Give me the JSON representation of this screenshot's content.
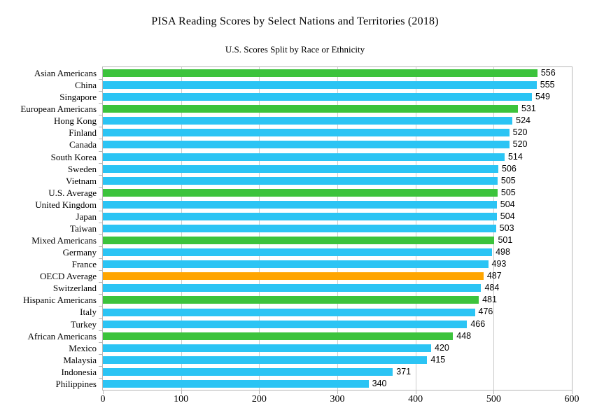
{
  "header": {
    "title": "PISA Reading Scores by Select Nations and Territories (2018)",
    "subtitle": "U.S. Scores Split by Race or Ethnicity"
  },
  "chart_data": {
    "type": "bar",
    "orientation": "horizontal",
    "title": "PISA Reading Scores by Select Nations and Territories (2018)",
    "subtitle": "U.S. Scores Split by Race or Ethnicity",
    "xlabel": "",
    "ylabel": "",
    "xlim": [
      0,
      600
    ],
    "x_ticks": [
      0,
      100,
      200,
      300,
      400,
      500,
      600
    ],
    "grid": true,
    "legend": false,
    "value_labels_shown": true,
    "colors": {
      "nation": "#2BC4F4",
      "us_group": "#3CC33C",
      "oecd_average": "#FFA500"
    },
    "bars": [
      {
        "label": "Asian Americans",
        "value": 556,
        "group": "us_group"
      },
      {
        "label": "China",
        "value": 555,
        "group": "nation"
      },
      {
        "label": "Singapore",
        "value": 549,
        "group": "nation"
      },
      {
        "label": "European Americans",
        "value": 531,
        "group": "us_group"
      },
      {
        "label": "Hong Kong",
        "value": 524,
        "group": "nation"
      },
      {
        "label": "Finland",
        "value": 520,
        "group": "nation"
      },
      {
        "label": "Canada",
        "value": 520,
        "group": "nation"
      },
      {
        "label": "South Korea",
        "value": 514,
        "group": "nation"
      },
      {
        "label": "Sweden",
        "value": 506,
        "group": "nation"
      },
      {
        "label": "Vietnam",
        "value": 505,
        "group": "nation"
      },
      {
        "label": "U.S. Average",
        "value": 505,
        "group": "us_group"
      },
      {
        "label": "United Kingdom",
        "value": 504,
        "group": "nation"
      },
      {
        "label": "Japan",
        "value": 504,
        "group": "nation"
      },
      {
        "label": "Taiwan",
        "value": 503,
        "group": "nation"
      },
      {
        "label": "Mixed Americans",
        "value": 501,
        "group": "us_group"
      },
      {
        "label": "Germany",
        "value": 498,
        "group": "nation"
      },
      {
        "label": "France",
        "value": 493,
        "group": "nation"
      },
      {
        "label": "OECD Average",
        "value": 487,
        "group": "oecd_average"
      },
      {
        "label": "Switzerland",
        "value": 484,
        "group": "nation"
      },
      {
        "label": "Hispanic Americans",
        "value": 481,
        "group": "us_group"
      },
      {
        "label": "Italy",
        "value": 476,
        "group": "nation"
      },
      {
        "label": "Turkey",
        "value": 466,
        "group": "nation"
      },
      {
        "label": "African Americans",
        "value": 448,
        "group": "us_group"
      },
      {
        "label": "Mexico",
        "value": 420,
        "group": "nation"
      },
      {
        "label": "Malaysia",
        "value": 415,
        "group": "nation"
      },
      {
        "label": "Indonesia",
        "value": 371,
        "group": "nation"
      },
      {
        "label": "Philippines",
        "value": 340,
        "group": "nation"
      }
    ]
  }
}
